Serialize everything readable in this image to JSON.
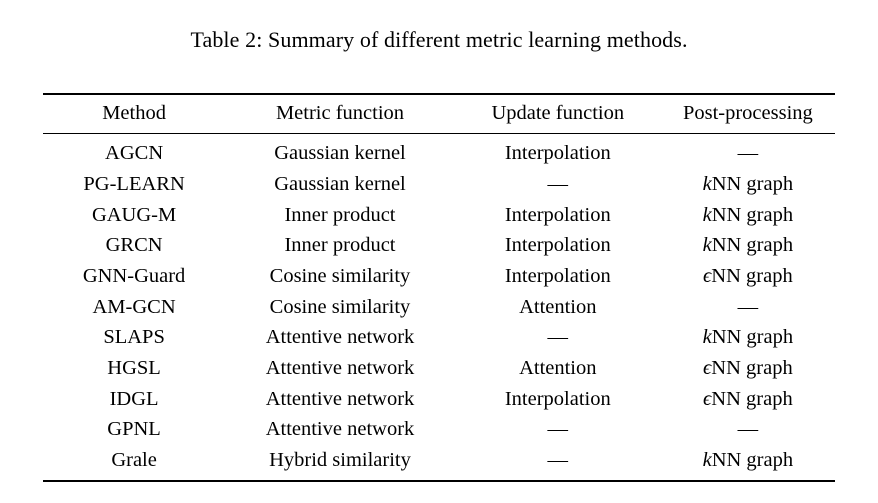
{
  "caption": "Table 2: Summary of different metric learning methods.",
  "table": {
    "columns": [
      "Method",
      "Metric function",
      "Update function",
      "Post-processing"
    ],
    "rows": [
      [
        "AGCN",
        "Gaussian kernel",
        "Interpolation",
        "—"
      ],
      [
        "PG-LEARN",
        "Gaussian kernel",
        "—",
        "*k*NN graph"
      ],
      [
        "GAUG-M",
        "Inner product",
        "Interpolation",
        "*k*NN graph"
      ],
      [
        "GRCN",
        "Inner product",
        "Interpolation",
        "*k*NN graph"
      ],
      [
        "GNN-Guard",
        "Cosine similarity",
        "Interpolation",
        "*ϵ*NN graph"
      ],
      [
        "AM-GCN",
        "Cosine similarity",
        "Attention",
        "—"
      ],
      [
        "SLAPS",
        "Attentive network",
        "—",
        "*k*NN graph"
      ],
      [
        "HGSL",
        "Attentive network",
        "Attention",
        "*ϵ*NN graph"
      ],
      [
        "IDGL",
        "Attentive network",
        "Interpolation",
        "*ϵ*NN graph"
      ],
      [
        "GPNL",
        "Attentive network",
        "—",
        "—"
      ],
      [
        "Grale",
        "Hybrid similarity",
        "—",
        "*k*NN graph"
      ]
    ]
  }
}
